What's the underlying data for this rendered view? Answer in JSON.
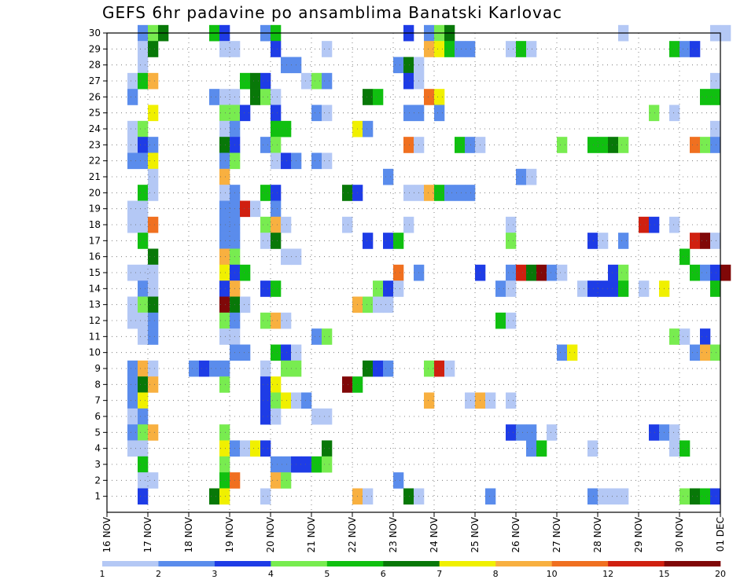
{
  "chart_data": {
    "type": "heatmap",
    "title": "GEFS 6hr padavine po ansamblima Banatski Karlovac",
    "y_ticks": [
      1,
      2,
      3,
      4,
      5,
      6,
      7,
      8,
      9,
      10,
      11,
      12,
      13,
      14,
      15,
      16,
      17,
      18,
      19,
      20,
      21,
      22,
      23,
      24,
      25,
      26,
      27,
      28,
      29,
      30
    ],
    "y_range": [
      0,
      30
    ],
    "x_ticks": [
      "16 NOV",
      "17 NOV",
      "18 NOV",
      "19 NOV",
      "20 NOV",
      "21 NOV",
      "22 NOV",
      "23 NOV",
      "24 NOV",
      "25 NOV",
      "26 NOV",
      "27 NOV",
      "28 NOV",
      "29 NOV",
      "30 NOV",
      "01 DEC"
    ],
    "x_steps_per_day": 4,
    "grid": true,
    "colorbar": {
      "labels": [
        "1",
        "2",
        "3",
        "4",
        "5",
        "6",
        "7",
        "8",
        "10",
        "12",
        "15",
        "20"
      ],
      "colors": [
        "#b4c8f5",
        "#5a8cec",
        "#1e3ce6",
        "#78ec50",
        "#10c010",
        "#087808",
        "#f0f000",
        "#f8b040",
        "#f07020",
        "#d02010",
        "#800808"
      ]
    },
    "cells": [
      [
        30,
        3,
        2
      ],
      [
        30,
        4,
        4
      ],
      [
        30,
        5,
        6
      ],
      [
        30,
        10,
        5
      ],
      [
        30,
        11,
        3
      ],
      [
        30,
        15,
        2
      ],
      [
        30,
        16,
        5
      ],
      [
        30,
        29,
        3
      ],
      [
        30,
        31,
        2
      ],
      [
        30,
        32,
        4
      ],
      [
        30,
        33,
        6
      ],
      [
        30,
        50,
        1
      ],
      [
        30,
        59,
        1
      ],
      [
        30,
        60,
        1
      ],
      [
        29,
        3,
        1
      ],
      [
        29,
        4,
        6
      ],
      [
        29,
        11,
        1
      ],
      [
        29,
        12,
        1
      ],
      [
        29,
        16,
        3
      ],
      [
        29,
        21,
        1
      ],
      [
        29,
        31,
        8
      ],
      [
        29,
        32,
        7
      ],
      [
        29,
        33,
        5
      ],
      [
        29,
        34,
        2
      ],
      [
        29,
        35,
        2
      ],
      [
        29,
        39,
        1
      ],
      [
        29,
        40,
        5
      ],
      [
        29,
        41,
        1
      ],
      [
        29,
        55,
        5
      ],
      [
        29,
        56,
        2
      ],
      [
        29,
        57,
        3
      ],
      [
        28,
        3,
        1
      ],
      [
        28,
        17,
        2
      ],
      [
        28,
        18,
        2
      ],
      [
        28,
        28,
        2
      ],
      [
        28,
        29,
        6
      ],
      [
        28,
        30,
        1
      ],
      [
        27,
        2,
        1
      ],
      [
        27,
        3,
        5
      ],
      [
        27,
        4,
        8
      ],
      [
        27,
        13,
        5
      ],
      [
        27,
        14,
        6
      ],
      [
        27,
        15,
        3
      ],
      [
        27,
        19,
        1
      ],
      [
        27,
        20,
        4
      ],
      [
        27,
        21,
        2
      ],
      [
        27,
        29,
        3
      ],
      [
        27,
        30,
        1
      ],
      [
        27,
        59,
        1
      ],
      [
        26,
        2,
        2
      ],
      [
        26,
        10,
        2
      ],
      [
        26,
        11,
        1
      ],
      [
        26,
        12,
        1
      ],
      [
        26,
        14,
        6
      ],
      [
        26,
        15,
        4
      ],
      [
        26,
        16,
        1
      ],
      [
        26,
        25,
        6
      ],
      [
        26,
        26,
        5
      ],
      [
        26,
        31,
        9
      ],
      [
        26,
        32,
        7
      ],
      [
        26,
        58,
        5
      ],
      [
        26,
        59,
        5
      ],
      [
        25,
        4,
        7
      ],
      [
        25,
        11,
        4
      ],
      [
        25,
        12,
        4
      ],
      [
        25,
        13,
        3
      ],
      [
        25,
        16,
        3
      ],
      [
        25,
        20,
        2
      ],
      [
        25,
        21,
        1
      ],
      [
        25,
        29,
        2
      ],
      [
        25,
        30,
        2
      ],
      [
        25,
        32,
        2
      ],
      [
        25,
        53,
        4
      ],
      [
        25,
        55,
        1
      ],
      [
        24,
        2,
        1
      ],
      [
        24,
        3,
        4
      ],
      [
        24,
        11,
        1
      ],
      [
        24,
        12,
        2
      ],
      [
        24,
        16,
        5
      ],
      [
        24,
        17,
        5
      ],
      [
        24,
        24,
        7
      ],
      [
        24,
        25,
        2
      ],
      [
        24,
        59,
        1
      ],
      [
        23,
        2,
        1
      ],
      [
        23,
        3,
        3
      ],
      [
        23,
        4,
        2
      ],
      [
        23,
        11,
        6
      ],
      [
        23,
        12,
        3
      ],
      [
        23,
        15,
        2
      ],
      [
        23,
        16,
        4
      ],
      [
        23,
        29,
        9
      ],
      [
        23,
        30,
        1
      ],
      [
        23,
        34,
        5
      ],
      [
        23,
        35,
        2
      ],
      [
        23,
        36,
        1
      ],
      [
        23,
        44,
        4
      ],
      [
        23,
        47,
        5
      ],
      [
        23,
        48,
        5
      ],
      [
        23,
        49,
        6
      ],
      [
        23,
        50,
        4
      ],
      [
        23,
        57,
        9
      ],
      [
        23,
        58,
        4
      ],
      [
        23,
        59,
        2
      ],
      [
        22,
        2,
        2
      ],
      [
        22,
        3,
        2
      ],
      [
        22,
        4,
        7
      ],
      [
        22,
        11,
        2
      ],
      [
        22,
        12,
        4
      ],
      [
        22,
        16,
        1
      ],
      [
        22,
        17,
        3
      ],
      [
        22,
        18,
        2
      ],
      [
        22,
        20,
        2
      ],
      [
        22,
        21,
        1
      ],
      [
        21,
        4,
        1
      ],
      [
        21,
        11,
        8
      ],
      [
        21,
        27,
        2
      ],
      [
        21,
        40,
        2
      ],
      [
        21,
        41,
        1
      ],
      [
        20,
        3,
        5
      ],
      [
        20,
        4,
        1
      ],
      [
        20,
        11,
        1
      ],
      [
        20,
        12,
        2
      ],
      [
        20,
        15,
        5
      ],
      [
        20,
        16,
        3
      ],
      [
        20,
        23,
        6
      ],
      [
        20,
        24,
        3
      ],
      [
        20,
        29,
        1
      ],
      [
        20,
        30,
        1
      ],
      [
        20,
        31,
        8
      ],
      [
        20,
        32,
        5
      ],
      [
        20,
        33,
        2
      ],
      [
        20,
        34,
        2
      ],
      [
        20,
        35,
        2
      ],
      [
        19,
        2,
        1
      ],
      [
        19,
        3,
        1
      ],
      [
        19,
        11,
        2
      ],
      [
        19,
        12,
        2
      ],
      [
        19,
        13,
        10
      ],
      [
        19,
        14,
        1
      ],
      [
        19,
        16,
        2
      ],
      [
        18,
        2,
        1
      ],
      [
        18,
        3,
        1
      ],
      [
        18,
        4,
        9
      ],
      [
        18,
        11,
        2
      ],
      [
        18,
        12,
        2
      ],
      [
        18,
        15,
        4
      ],
      [
        18,
        16,
        8
      ],
      [
        18,
        17,
        1
      ],
      [
        18,
        23,
        1
      ],
      [
        18,
        29,
        1
      ],
      [
        18,
        39,
        1
      ],
      [
        18,
        52,
        10
      ],
      [
        18,
        53,
        3
      ],
      [
        18,
        55,
        1
      ],
      [
        17,
        3,
        5
      ],
      [
        17,
        11,
        2
      ],
      [
        17,
        12,
        2
      ],
      [
        17,
        15,
        1
      ],
      [
        17,
        16,
        6
      ],
      [
        17,
        25,
        3
      ],
      [
        17,
        27,
        3
      ],
      [
        17,
        28,
        5
      ],
      [
        17,
        39,
        4
      ],
      [
        17,
        47,
        3
      ],
      [
        17,
        48,
        1
      ],
      [
        17,
        50,
        2
      ],
      [
        17,
        57,
        10
      ],
      [
        17,
        58,
        11
      ],
      [
        17,
        59,
        1
      ],
      [
        16,
        4,
        6
      ],
      [
        16,
        11,
        8
      ],
      [
        16,
        12,
        4
      ],
      [
        16,
        17,
        1
      ],
      [
        16,
        18,
        1
      ],
      [
        16,
        56,
        5
      ],
      [
        15,
        2,
        1
      ],
      [
        15,
        3,
        1
      ],
      [
        15,
        4,
        1
      ],
      [
        15,
        11,
        7
      ],
      [
        15,
        12,
        3
      ],
      [
        15,
        13,
        5
      ],
      [
        15,
        28,
        9
      ],
      [
        15,
        30,
        2
      ],
      [
        15,
        36,
        3
      ],
      [
        15,
        39,
        2
      ],
      [
        15,
        40,
        10
      ],
      [
        15,
        41,
        6
      ],
      [
        15,
        42,
        11
      ],
      [
        15,
        43,
        2
      ],
      [
        15,
        44,
        1
      ],
      [
        15,
        49,
        3
      ],
      [
        15,
        50,
        4
      ],
      [
        15,
        57,
        5
      ],
      [
        15,
        58,
        2
      ],
      [
        15,
        59,
        3
      ],
      [
        15,
        60,
        11
      ],
      [
        14,
        3,
        2
      ],
      [
        14,
        4,
        1
      ],
      [
        14,
        11,
        3
      ],
      [
        14,
        12,
        8
      ],
      [
        14,
        15,
        3
      ],
      [
        14,
        16,
        5
      ],
      [
        14,
        26,
        4
      ],
      [
        14,
        27,
        3
      ],
      [
        14,
        28,
        1
      ],
      [
        14,
        38,
        2
      ],
      [
        14,
        39,
        1
      ],
      [
        14,
        46,
        1
      ],
      [
        14,
        47,
        3
      ],
      [
        14,
        48,
        3
      ],
      [
        14,
        49,
        3
      ],
      [
        14,
        50,
        5
      ],
      [
        14,
        52,
        1
      ],
      [
        14,
        54,
        7
      ],
      [
        14,
        59,
        5
      ],
      [
        13,
        2,
        1
      ],
      [
        13,
        3,
        4
      ],
      [
        13,
        4,
        6
      ],
      [
        13,
        11,
        11
      ],
      [
        13,
        12,
        6
      ],
      [
        13,
        13,
        1
      ],
      [
        13,
        24,
        8
      ],
      [
        13,
        25,
        4
      ],
      [
        13,
        26,
        1
      ],
      [
        13,
        27,
        1
      ],
      [
        12,
        2,
        1
      ],
      [
        12,
        3,
        1
      ],
      [
        12,
        4,
        2
      ],
      [
        12,
        11,
        4
      ],
      [
        12,
        12,
        2
      ],
      [
        12,
        15,
        4
      ],
      [
        12,
        16,
        8
      ],
      [
        12,
        17,
        1
      ],
      [
        12,
        38,
        5
      ],
      [
        12,
        39,
        1
      ],
      [
        11,
        3,
        1
      ],
      [
        11,
        4,
        2
      ],
      [
        11,
        11,
        1
      ],
      [
        11,
        12,
        1
      ],
      [
        11,
        20,
        2
      ],
      [
        11,
        21,
        4
      ],
      [
        11,
        55,
        4
      ],
      [
        11,
        56,
        1
      ],
      [
        11,
        58,
        3
      ],
      [
        10,
        12,
        2
      ],
      [
        10,
        13,
        2
      ],
      [
        10,
        16,
        5
      ],
      [
        10,
        17,
        3
      ],
      [
        10,
        18,
        1
      ],
      [
        10,
        44,
        2
      ],
      [
        10,
        45,
        7
      ],
      [
        10,
        57,
        2
      ],
      [
        10,
        58,
        8
      ],
      [
        10,
        59,
        4
      ],
      [
        9,
        2,
        2
      ],
      [
        9,
        3,
        8
      ],
      [
        9,
        4,
        1
      ],
      [
        9,
        8,
        2
      ],
      [
        9,
        9,
        3
      ],
      [
        9,
        10,
        2
      ],
      [
        9,
        11,
        2
      ],
      [
        9,
        15,
        1
      ],
      [
        9,
        17,
        4
      ],
      [
        9,
        18,
        4
      ],
      [
        9,
        25,
        6
      ],
      [
        9,
        26,
        3
      ],
      [
        9,
        27,
        2
      ],
      [
        9,
        31,
        4
      ],
      [
        9,
        32,
        10
      ],
      [
        9,
        33,
        1
      ],
      [
        8,
        2,
        2
      ],
      [
        8,
        3,
        6
      ],
      [
        8,
        4,
        8
      ],
      [
        8,
        11,
        4
      ],
      [
        8,
        15,
        3
      ],
      [
        8,
        16,
        7
      ],
      [
        8,
        23,
        11
      ],
      [
        8,
        24,
        5
      ],
      [
        7,
        2,
        2
      ],
      [
        7,
        3,
        7
      ],
      [
        7,
        15,
        3
      ],
      [
        7,
        16,
        4
      ],
      [
        7,
        17,
        7
      ],
      [
        7,
        18,
        1
      ],
      [
        7,
        19,
        2
      ],
      [
        7,
        31,
        8
      ],
      [
        7,
        35,
        1
      ],
      [
        7,
        36,
        8
      ],
      [
        7,
        37,
        1
      ],
      [
        7,
        39,
        1
      ],
      [
        6,
        2,
        1
      ],
      [
        6,
        3,
        2
      ],
      [
        6,
        15,
        3
      ],
      [
        6,
        16,
        1
      ],
      [
        6,
        20,
        1
      ],
      [
        6,
        21,
        1
      ],
      [
        5,
        2,
        2
      ],
      [
        5,
        3,
        4
      ],
      [
        5,
        4,
        8
      ],
      [
        5,
        11,
        4
      ],
      [
        5,
        39,
        3
      ],
      [
        5,
        40,
        2
      ],
      [
        5,
        41,
        2
      ],
      [
        5,
        43,
        1
      ],
      [
        5,
        53,
        3
      ],
      [
        5,
        54,
        2
      ],
      [
        5,
        55,
        1
      ],
      [
        4,
        2,
        1
      ],
      [
        4,
        3,
        1
      ],
      [
        4,
        11,
        7
      ],
      [
        4,
        12,
        2
      ],
      [
        4,
        13,
        1
      ],
      [
        4,
        14,
        7
      ],
      [
        4,
        15,
        3
      ],
      [
        4,
        21,
        6
      ],
      [
        4,
        41,
        2
      ],
      [
        4,
        42,
        5
      ],
      [
        4,
        47,
        1
      ],
      [
        4,
        55,
        1
      ],
      [
        4,
        56,
        5
      ],
      [
        3,
        3,
        5
      ],
      [
        3,
        11,
        4
      ],
      [
        3,
        16,
        2
      ],
      [
        3,
        17,
        2
      ],
      [
        3,
        18,
        3
      ],
      [
        3,
        19,
        3
      ],
      [
        3,
        20,
        5
      ],
      [
        3,
        21,
        4
      ],
      [
        2,
        3,
        1
      ],
      [
        2,
        4,
        1
      ],
      [
        2,
        11,
        5
      ],
      [
        2,
        12,
        9
      ],
      [
        2,
        16,
        8
      ],
      [
        2,
        17,
        4
      ],
      [
        2,
        28,
        2
      ],
      [
        1,
        3,
        3
      ],
      [
        1,
        10,
        6
      ],
      [
        1,
        11,
        7
      ],
      [
        1,
        15,
        1
      ],
      [
        1,
        24,
        8
      ],
      [
        1,
        25,
        1
      ],
      [
        1,
        29,
        6
      ],
      [
        1,
        30,
        1
      ],
      [
        1,
        37,
        2
      ],
      [
        1,
        47,
        2
      ],
      [
        1,
        48,
        1
      ],
      [
        1,
        49,
        1
      ],
      [
        1,
        50,
        1
      ],
      [
        1,
        56,
        4
      ],
      [
        1,
        57,
        6
      ],
      [
        1,
        58,
        5
      ],
      [
        1,
        59,
        3
      ]
    ]
  }
}
